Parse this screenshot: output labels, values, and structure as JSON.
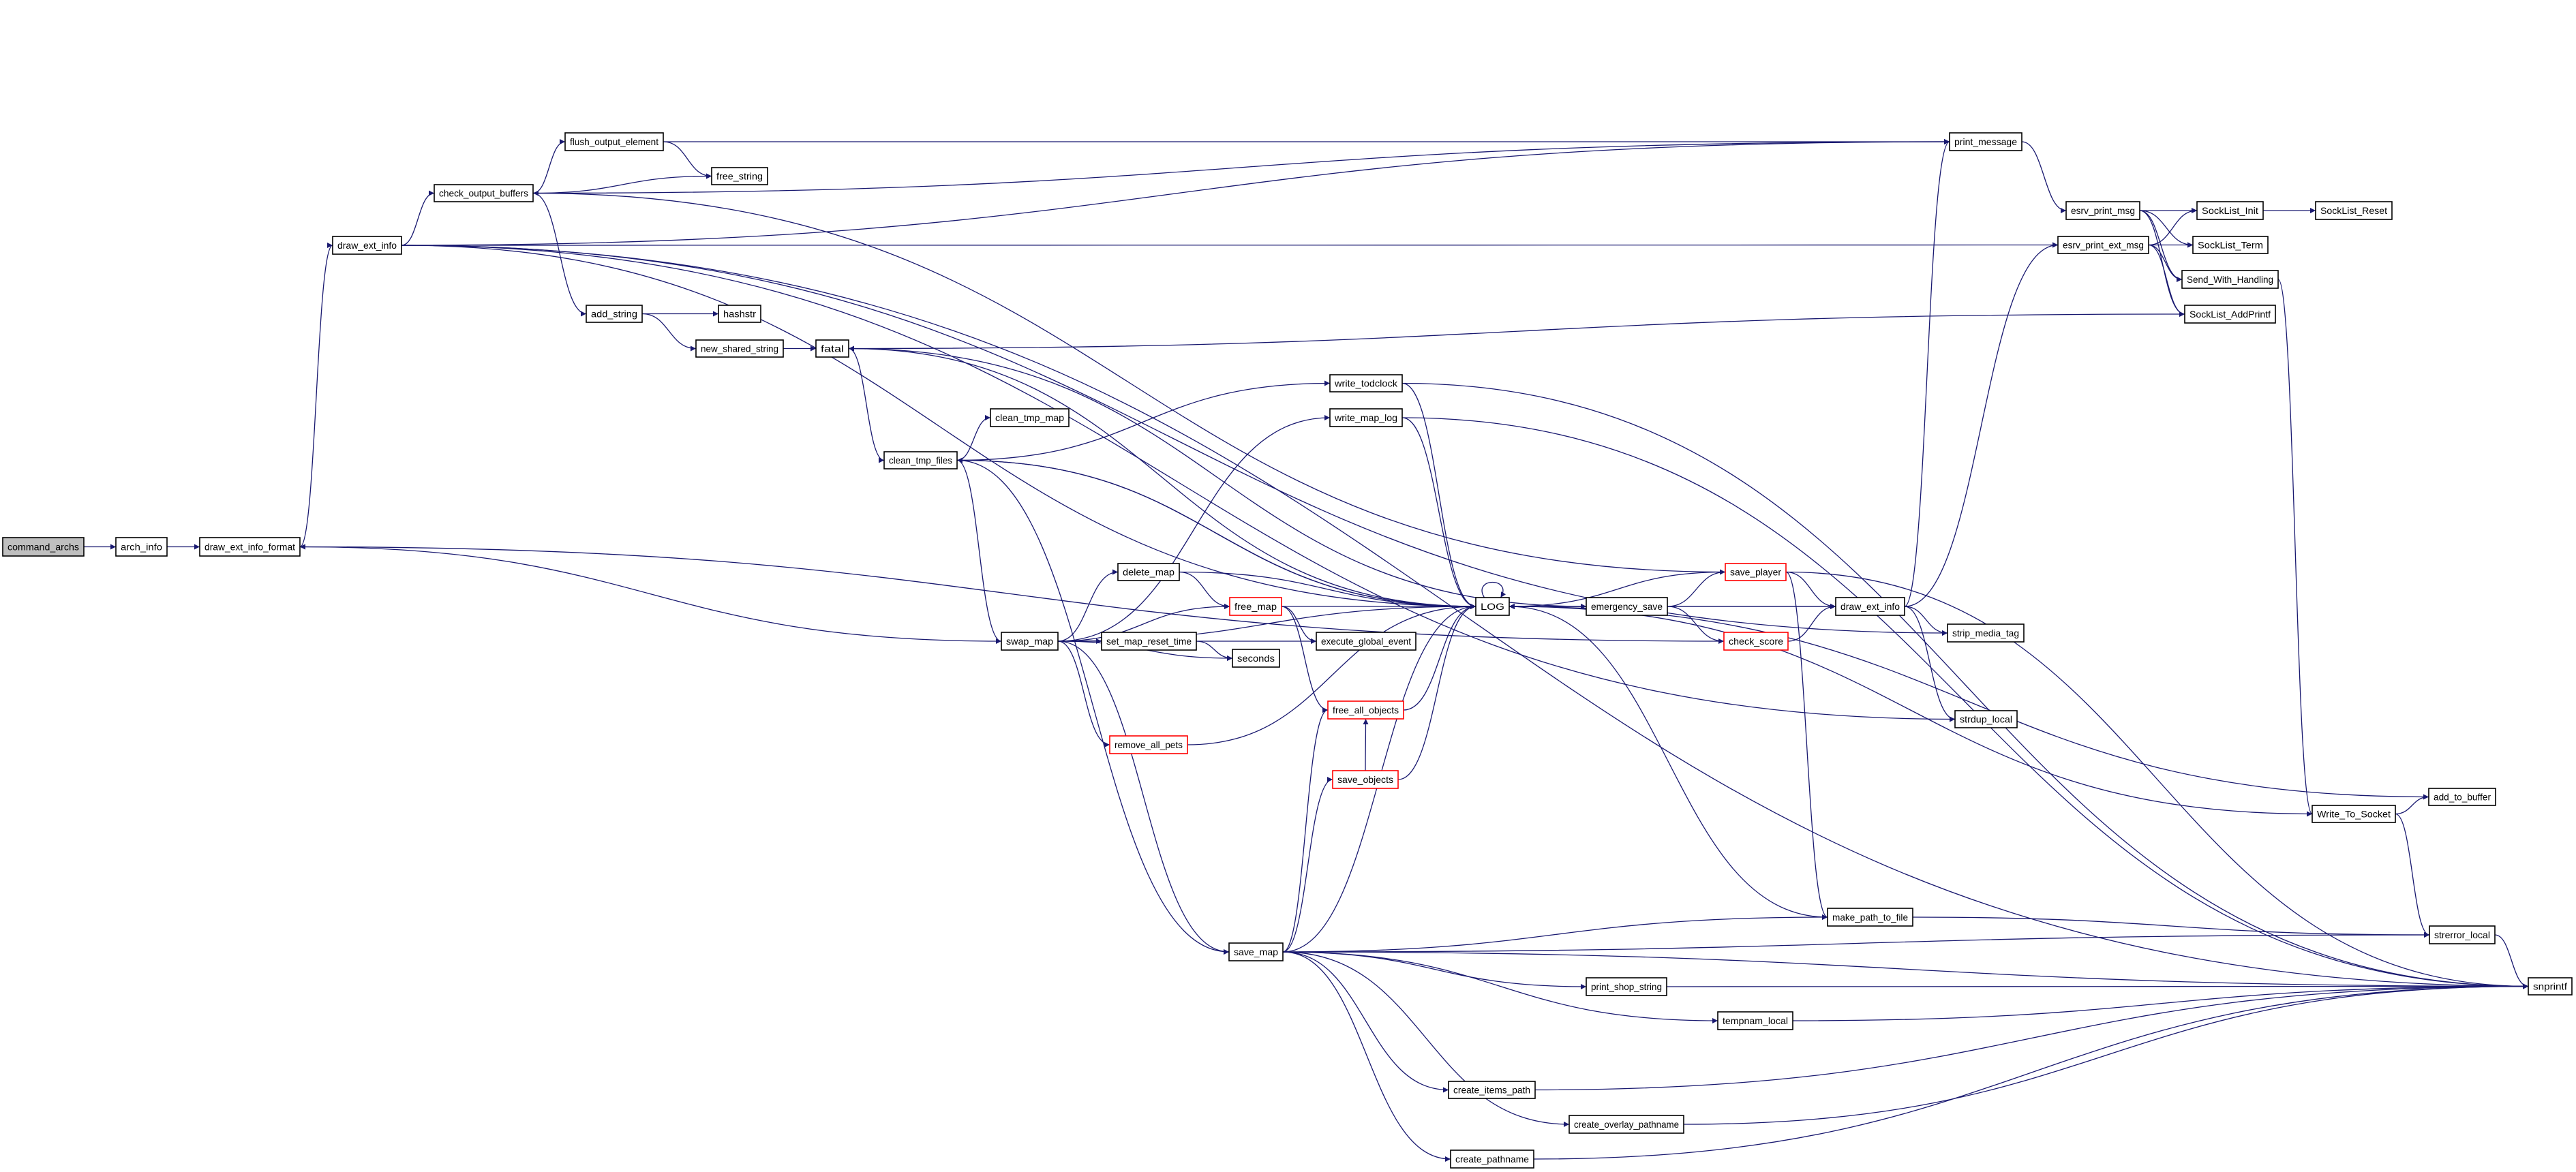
{
  "colors": {
    "edge": "#191970",
    "truncated_border": "#ff0000",
    "root_fill": "#bfbfbf",
    "border": "#000000"
  },
  "nodes": [
    {
      "id": "command_archs",
      "label": "command_archs",
      "kind": "root"
    },
    {
      "id": "arch_info",
      "label": "arch_info"
    },
    {
      "id": "draw_ext_info_format",
      "label": "draw_ext_info_format"
    },
    {
      "id": "draw_ext_info_L",
      "label": "draw_ext_info"
    },
    {
      "id": "check_output_buffers",
      "label": "check_output_buffers"
    },
    {
      "id": "flush_output_element",
      "label": "flush_output_element"
    },
    {
      "id": "free_string",
      "label": "free_string"
    },
    {
      "id": "add_string",
      "label": "add_string"
    },
    {
      "id": "hashstr",
      "label": "hashstr"
    },
    {
      "id": "new_shared_string",
      "label": "new_shared_string"
    },
    {
      "id": "fatal",
      "label": "fatal"
    },
    {
      "id": "clean_tmp_map",
      "label": "clean_tmp_map"
    },
    {
      "id": "clean_tmp_files",
      "label": "clean_tmp_files"
    },
    {
      "id": "write_todclock",
      "label": "write_todclock"
    },
    {
      "id": "write_map_log",
      "label": "write_map_log"
    },
    {
      "id": "swap_map",
      "label": "swap_map"
    },
    {
      "id": "delete_map",
      "label": "delete_map"
    },
    {
      "id": "free_map",
      "label": "free_map",
      "kind": "truncated"
    },
    {
      "id": "set_map_reset_time",
      "label": "set_map_reset_time"
    },
    {
      "id": "seconds",
      "label": "seconds"
    },
    {
      "id": "execute_global_event",
      "label": "execute_global_event"
    },
    {
      "id": "free_all_objects",
      "label": "free_all_objects",
      "kind": "truncated"
    },
    {
      "id": "remove_all_pets",
      "label": "remove_all_pets",
      "kind": "truncated"
    },
    {
      "id": "save_objects",
      "label": "save_objects",
      "kind": "truncated"
    },
    {
      "id": "LOG",
      "label": "LOG"
    },
    {
      "id": "emergency_save",
      "label": "emergency_save"
    },
    {
      "id": "save_player",
      "label": "save_player",
      "kind": "truncated"
    },
    {
      "id": "check_score",
      "label": "check_score",
      "kind": "truncated"
    },
    {
      "id": "draw_ext_info_R",
      "label": "draw_ext_info"
    },
    {
      "id": "strip_media_tag",
      "label": "strip_media_tag"
    },
    {
      "id": "strdup_local",
      "label": "strdup_local"
    },
    {
      "id": "print_message",
      "label": "print_message"
    },
    {
      "id": "esrv_print_msg",
      "label": "esrv_print_msg"
    },
    {
      "id": "esrv_print_ext_msg",
      "label": "esrv_print_ext_msg"
    },
    {
      "id": "SockList_Init",
      "label": "SockList_Init"
    },
    {
      "id": "SockList_Reset",
      "label": "SockList_Reset"
    },
    {
      "id": "SockList_Term",
      "label": "SockList_Term"
    },
    {
      "id": "Send_With_Handling",
      "label": "Send_With_Handling"
    },
    {
      "id": "SockList_AddPrintf",
      "label": "SockList_AddPrintf"
    },
    {
      "id": "add_to_buffer",
      "label": "add_to_buffer"
    },
    {
      "id": "Write_To_Socket",
      "label": "Write_To_Socket"
    },
    {
      "id": "strerror_local",
      "label": "strerror_local"
    },
    {
      "id": "snprintf",
      "label": "snprintf"
    },
    {
      "id": "save_map",
      "label": "save_map"
    },
    {
      "id": "make_path_to_file",
      "label": "make_path_to_file"
    },
    {
      "id": "print_shop_string",
      "label": "print_shop_string"
    },
    {
      "id": "tempnam_local",
      "label": "tempnam_local"
    },
    {
      "id": "create_items_path",
      "label": "create_items_path"
    },
    {
      "id": "create_overlay_pathname",
      "label": "create_overlay_pathname"
    },
    {
      "id": "create_pathname",
      "label": "create_pathname"
    }
  ],
  "edges": [
    [
      "command_archs",
      "arch_info"
    ],
    [
      "arch_info",
      "draw_ext_info_format"
    ],
    [
      "draw_ext_info_format",
      "draw_ext_info_L"
    ],
    [
      "draw_ext_info_L",
      "check_output_buffers"
    ],
    [
      "draw_ext_info_L",
      "print_message"
    ],
    [
      "draw_ext_info_L",
      "esrv_print_ext_msg"
    ],
    [
      "draw_ext_info_L",
      "snprintf"
    ],
    [
      "draw_ext_info_L",
      "LOG"
    ],
    [
      "draw_ext_info_L",
      "strip_media_tag"
    ],
    [
      "draw_ext_info_L",
      "strdup_local"
    ],
    [
      "check_output_buffers",
      "flush_output_element"
    ],
    [
      "check_output_buffers",
      "free_string"
    ],
    [
      "check_output_buffers",
      "add_string"
    ],
    [
      "check_output_buffers",
      "print_message"
    ],
    [
      "flush_output_element",
      "free_string"
    ],
    [
      "flush_output_element",
      "print_message"
    ],
    [
      "add_string",
      "hashstr"
    ],
    [
      "add_string",
      "new_shared_string"
    ],
    [
      "new_shared_string",
      "fatal"
    ],
    [
      "fatal",
      "clean_tmp_files"
    ],
    [
      "fatal",
      "emergency_save"
    ],
    [
      "fatal",
      "LOG"
    ],
    [
      "SockList_AddPrintf",
      "fatal"
    ],
    [
      "clean_tmp_files",
      "clean_tmp_map"
    ],
    [
      "clean_tmp_files",
      "write_todclock"
    ],
    [
      "clean_tmp_files",
      "swap_map"
    ],
    [
      "clean_tmp_files",
      "LOG"
    ],
    [
      "clean_tmp_files",
      "save_map"
    ],
    [
      "LOG",
      "clean_tmp_files"
    ],
    [
      "write_todclock",
      "LOG"
    ],
    [
      "write_todclock",
      "snprintf"
    ],
    [
      "write_map_log",
      "LOG"
    ],
    [
      "write_map_log",
      "snprintf"
    ],
    [
      "swap_map",
      "draw_ext_info_format"
    ],
    [
      "swap_map",
      "delete_map"
    ],
    [
      "swap_map",
      "free_map"
    ],
    [
      "swap_map",
      "set_map_reset_time"
    ],
    [
      "swap_map",
      "seconds"
    ],
    [
      "swap_map",
      "execute_global_event"
    ],
    [
      "swap_map",
      "remove_all_pets"
    ],
    [
      "swap_map",
      "save_map"
    ],
    [
      "swap_map",
      "LOG"
    ],
    [
      "swap_map",
      "write_map_log"
    ],
    [
      "delete_map",
      "free_map"
    ],
    [
      "delete_map",
      "LOG"
    ],
    [
      "free_map",
      "LOG"
    ],
    [
      "free_map",
      "execute_global_event"
    ],
    [
      "free_map",
      "free_all_objects"
    ],
    [
      "set_map_reset_time",
      "seconds"
    ],
    [
      "remove_all_pets",
      "LOG"
    ],
    [
      "free_all_objects",
      "LOG"
    ],
    [
      "save_objects",
      "LOG"
    ],
    [
      "save_objects",
      "free_all_objects"
    ],
    [
      "save_map",
      "save_objects"
    ],
    [
      "save_map",
      "free_all_objects"
    ],
    [
      "save_map",
      "LOG"
    ],
    [
      "save_map",
      "make_path_to_file"
    ],
    [
      "save_map",
      "strerror_local"
    ],
    [
      "save_map",
      "print_shop_string"
    ],
    [
      "save_map",
      "tempnam_local"
    ],
    [
      "save_map",
      "snprintf"
    ],
    [
      "save_map",
      "create_items_path"
    ],
    [
      "save_map",
      "create_overlay_pathname"
    ],
    [
      "save_map",
      "create_pathname"
    ],
    [
      "LOG",
      "LOG"
    ],
    [
      "LOG",
      "emergency_save"
    ],
    [
      "emergency_save",
      "LOG"
    ],
    [
      "emergency_save",
      "save_player"
    ],
    [
      "emergency_save",
      "draw_ext_info_R"
    ],
    [
      "emergency_save",
      "check_score"
    ],
    [
      "save_player",
      "LOG"
    ],
    [
      "save_player",
      "draw_ext_info_R"
    ],
    [
      "save_player",
      "make_path_to_file"
    ],
    [
      "save_player",
      "snprintf"
    ],
    [
      "save_player",
      "check_output_buffers"
    ],
    [
      "check_score",
      "draw_ext_info_R"
    ],
    [
      "check_score",
      "draw_ext_info_format"
    ],
    [
      "draw_ext_info_R",
      "print_message"
    ],
    [
      "draw_ext_info_R",
      "esrv_print_ext_msg"
    ],
    [
      "draw_ext_info_R",
      "LOG"
    ],
    [
      "draw_ext_info_R",
      "strip_media_tag"
    ],
    [
      "draw_ext_info_R",
      "strdup_local"
    ],
    [
      "make_path_to_file",
      "LOG"
    ],
    [
      "make_path_to_file",
      "strerror_local"
    ],
    [
      "print_message",
      "esrv_print_msg"
    ],
    [
      "esrv_print_msg",
      "SockList_Init"
    ],
    [
      "esrv_print_msg",
      "SockList_Term"
    ],
    [
      "esrv_print_msg",
      "Send_With_Handling"
    ],
    [
      "esrv_print_msg",
      "SockList_AddPrintf"
    ],
    [
      "esrv_print_ext_msg",
      "SockList_Init"
    ],
    [
      "esrv_print_ext_msg",
      "SockList_Term"
    ],
    [
      "esrv_print_ext_msg",
      "Send_With_Handling"
    ],
    [
      "esrv_print_ext_msg",
      "SockList_AddPrintf"
    ],
    [
      "SockList_Init",
      "SockList_Reset"
    ],
    [
      "Send_With_Handling",
      "Write_To_Socket"
    ],
    [
      "Write_To_Socket",
      "add_to_buffer"
    ],
    [
      "Write_To_Socket",
      "strerror_local"
    ],
    [
      "Write_To_Socket",
      "LOG"
    ],
    [
      "add_to_buffer",
      "LOG"
    ],
    [
      "strerror_local",
      "snprintf"
    ],
    [
      "print_shop_string",
      "snprintf"
    ],
    [
      "tempnam_local",
      "snprintf"
    ],
    [
      "create_items_path",
      "snprintf"
    ],
    [
      "create_overlay_pathname",
      "snprintf"
    ],
    [
      "create_pathname",
      "snprintf"
    ]
  ]
}
